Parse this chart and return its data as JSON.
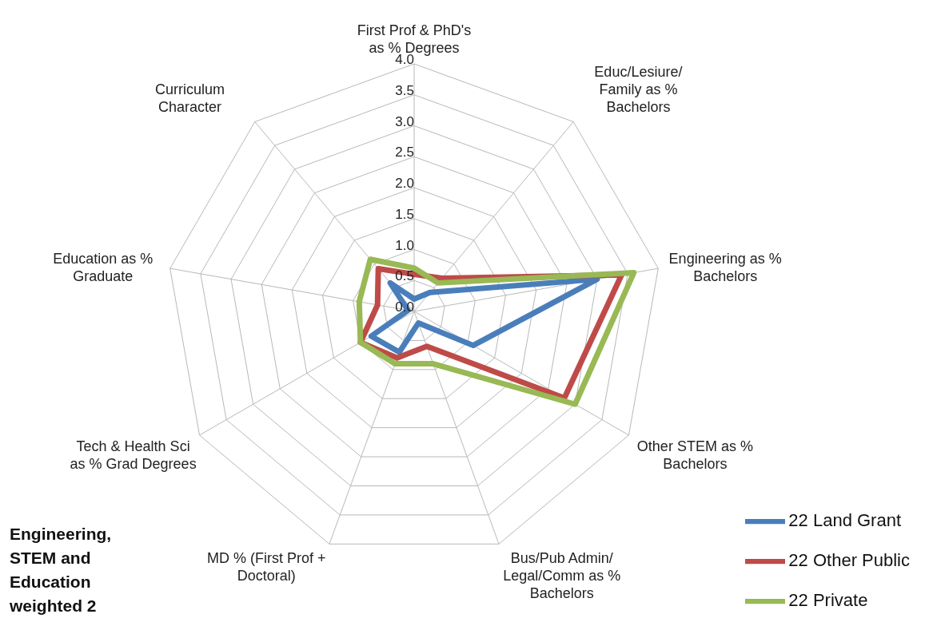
{
  "chart_data": {
    "type": "radar",
    "title": "Engineering, STEM and Education weighted 2",
    "categories": [
      "First Prof & PhD's as % Degrees",
      "Educ/Lesiure/Family as % Bachelors",
      "Engineering as % Bachelors",
      "Other STEM as % Bachelors",
      "Bus/Pub Admin/Legal/Comm as % Bachelors",
      "MD % (First Prof + Doctoral)",
      "Tech & Health Sci as % Grad Degrees",
      "Education as % Graduate",
      "Curriculum Character"
    ],
    "series": [
      {
        "name": "22 Land Grant",
        "color": "#4a7ebb",
        "values": [
          0.2,
          0.4,
          3.0,
          1.1,
          0.2,
          0.7,
          0.8,
          0.1,
          0.6
        ]
      },
      {
        "name": "22  Other Public",
        "color": "#be4b48",
        "values": [
          0.6,
          0.7,
          3.4,
          2.8,
          0.6,
          0.8,
          1.0,
          0.6,
          0.9
        ]
      },
      {
        "name": "22 Private",
        "color": "#98b954",
        "values": [
          0.7,
          0.6,
          3.6,
          3.0,
          0.9,
          0.9,
          1.0,
          0.9,
          1.1
        ]
      }
    ],
    "ylim": [
      0,
      4
    ],
    "yticks": [
      {
        "value": 0,
        "label": "0.0"
      },
      {
        "value": 0.5,
        "label": "0.5"
      },
      {
        "value": 1,
        "label": "1.0"
      },
      {
        "value": 1.5,
        "label": "1.5"
      },
      {
        "value": 2,
        "label": "2.0"
      },
      {
        "value": 2.5,
        "label": "2.5"
      },
      {
        "value": 3,
        "label": "3.0"
      },
      {
        "value": 3.5,
        "label": "3.5"
      },
      {
        "value": 4,
        "label": "4.0"
      }
    ],
    "grid": true,
    "legend": "bottom right",
    "marker": "none",
    "line_style": "solid"
  }
}
